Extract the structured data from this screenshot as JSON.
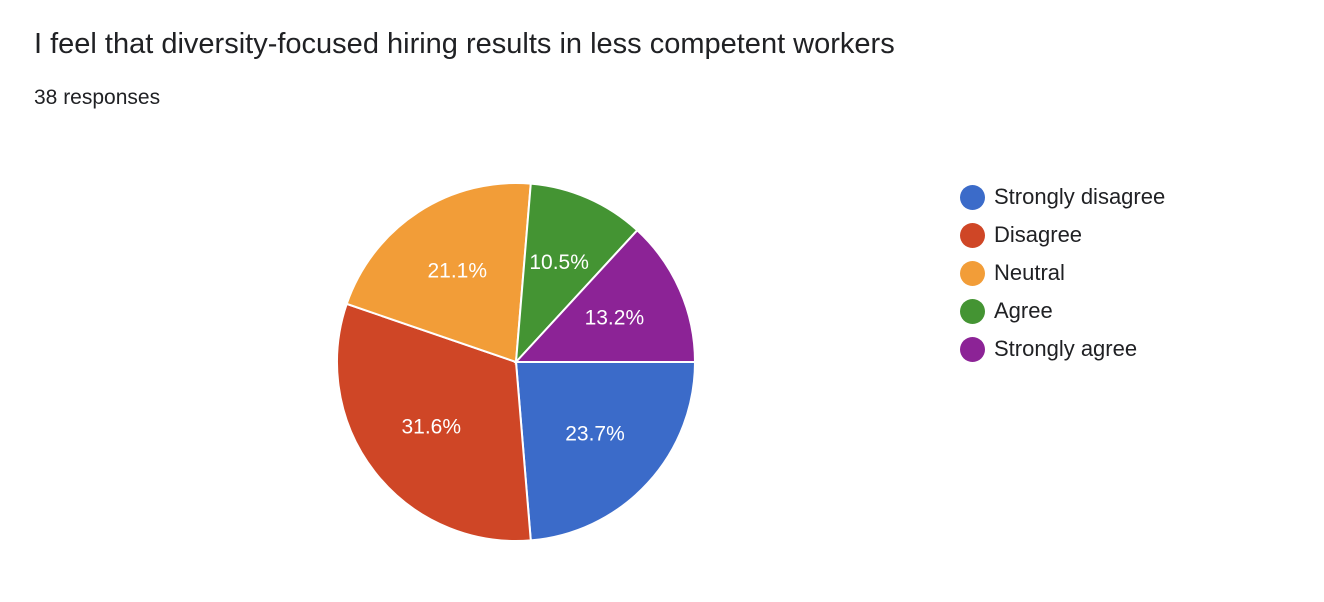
{
  "form_summary": {
    "question": "I feel that diversity-focused hiring results in less competent workers",
    "responses_text": "38 responses"
  },
  "chart_data": {
    "type": "pie",
    "title": "I feel that diversity-focused hiring results in less competent workers",
    "total_responses": 38,
    "legend_position": "right",
    "categories": [
      "Strongly disagree",
      "Disagree",
      "Neutral",
      "Agree",
      "Strongly agree"
    ],
    "values": [
      9,
      12,
      8,
      4,
      5
    ],
    "percent_labels": [
      "23.7%",
      "31.6%",
      "21.1%",
      "10.5%",
      "13.2%"
    ],
    "colors": [
      "#3b6bc9",
      "#cf4626",
      "#f29d38",
      "#449433",
      "#8c2396"
    ]
  }
}
